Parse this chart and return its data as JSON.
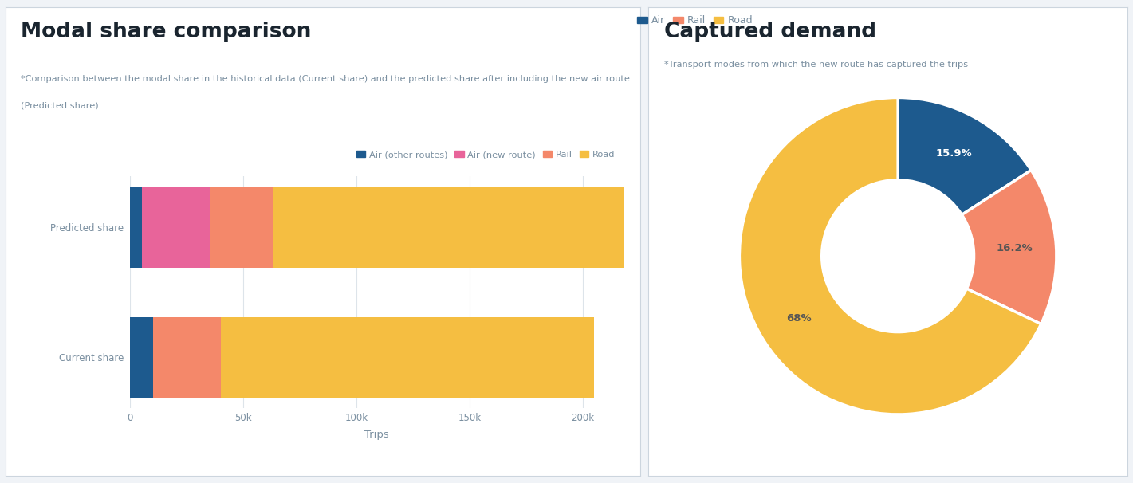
{
  "left_title": "Modal share comparison",
  "left_subtitle_line1": "*Comparison between the modal share in the historical data (Current share) and the predicted share after including the new air route",
  "left_subtitle_line2": "(Predicted share)",
  "right_title": "Captured demand",
  "right_subtitle": "*Transport modes from which the new route has captured the trips",
  "bar_categories": [
    "Predicted share",
    "Current share"
  ],
  "bar_data": {
    "Air (other routes)": [
      5000,
      10000
    ],
    "Air (new route)": [
      30000,
      0
    ],
    "Rail": [
      28000,
      30000
    ],
    "Road": [
      170000,
      165000
    ]
  },
  "bar_colors": {
    "Air (other routes)": "#1d5a8e",
    "Air (new route)": "#e8649a",
    "Rail": "#f4886a",
    "Road": "#f5be41"
  },
  "bar_xlabel": "Trips",
  "bar_xlim": [
    0,
    218000
  ],
  "bar_xticks": [
    0,
    50000,
    100000,
    150000,
    200000
  ],
  "bar_xtick_labels": [
    "0",
    "50k",
    "100k",
    "150k",
    "200k"
  ],
  "pie_labels": [
    "Air",
    "Rail",
    "Road"
  ],
  "pie_values": [
    15.9,
    16.2,
    68.0
  ],
  "pie_label_strings": [
    "15.9%",
    "16.2%",
    "68%"
  ],
  "pie_colors": [
    "#1d5a8e",
    "#f4886a",
    "#f5be41"
  ],
  "pie_text_colors": [
    "#ffffff",
    "#555555",
    "#555555"
  ],
  "background_color": "#f0f3f7",
  "panel_color": "#ffffff",
  "title_color": "#1a252f",
  "subtitle_color": "#7a8fa0",
  "axis_label_color": "#7a8fa0",
  "tick_color": "#7a8fa0",
  "grid_color": "#dde4ea"
}
